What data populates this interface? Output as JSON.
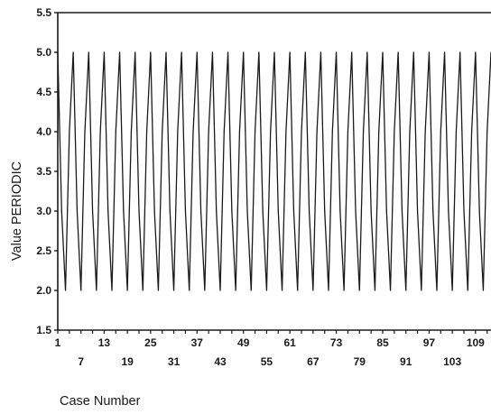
{
  "chart_data": {
    "type": "line",
    "title": "",
    "xlabel": "Case Number",
    "ylabel": "Value PERIODIC",
    "ylim": [
      1.5,
      5.5
    ],
    "xlim": [
      1,
      113
    ],
    "y_ticks": [
      "1.5",
      "2.0",
      "2.5",
      "3.0",
      "3.5",
      "4.0",
      "4.5",
      "5.0",
      "5.5"
    ],
    "x_ticks_top_row": [
      "1",
      "13",
      "25",
      "37",
      "49",
      "61",
      "73",
      "85",
      "97",
      "109"
    ],
    "x_ticks_bottom_row": [
      "7",
      "19",
      "31",
      "43",
      "55",
      "67",
      "79",
      "91",
      "103"
    ],
    "grid": false,
    "legend": false,
    "series": [
      {
        "period_cases": 4,
        "pattern_values": [
          5.0,
          3.0,
          2.0,
          4.0
        ],
        "x": [
          1,
          2,
          3,
          4,
          5,
          6,
          7,
          8,
          9,
          10,
          11,
          12,
          13,
          14,
          15,
          16,
          17,
          18,
          19,
          20,
          21,
          22,
          23,
          24,
          25,
          26,
          27,
          28,
          29,
          30,
          31,
          32,
          33,
          34,
          35,
          36,
          37,
          38,
          39,
          40,
          41,
          42,
          43,
          44,
          45,
          46,
          47,
          48,
          49,
          50,
          51,
          52,
          53,
          54,
          55,
          56,
          57,
          58,
          59,
          60,
          61,
          62,
          63,
          64,
          65,
          66,
          67,
          68,
          69,
          70,
          71,
          72,
          73,
          74,
          75,
          76,
          77,
          78,
          79,
          80,
          81,
          82,
          83,
          84,
          85,
          86,
          87,
          88,
          89,
          90,
          91,
          92,
          93,
          94,
          95,
          96,
          97,
          98,
          99,
          100,
          101,
          102,
          103,
          104,
          105,
          106,
          107,
          108,
          109,
          110,
          111,
          112,
          113
        ],
        "values": [
          5.0,
          3.0,
          2.0,
          4.0,
          5.0,
          3.0,
          2.0,
          4.0,
          5.0,
          3.0,
          2.0,
          4.0,
          5.0,
          3.0,
          2.0,
          4.0,
          5.0,
          3.0,
          2.0,
          4.0,
          5.0,
          3.0,
          2.0,
          4.0,
          5.0,
          3.0,
          2.0,
          4.0,
          5.0,
          3.0,
          2.0,
          4.0,
          5.0,
          3.0,
          2.0,
          4.0,
          5.0,
          3.0,
          2.0,
          4.0,
          5.0,
          3.0,
          2.0,
          4.0,
          5.0,
          3.0,
          2.0,
          4.0,
          5.0,
          3.0,
          2.0,
          4.0,
          5.0,
          3.0,
          2.0,
          4.0,
          5.0,
          3.0,
          2.0,
          4.0,
          5.0,
          3.0,
          2.0,
          4.0,
          5.0,
          3.0,
          2.0,
          4.0,
          5.0,
          3.0,
          2.0,
          4.0,
          5.0,
          3.0,
          2.0,
          4.0,
          5.0,
          3.0,
          2.0,
          4.0,
          5.0,
          3.0,
          2.0,
          4.0,
          5.0,
          3.0,
          2.0,
          4.0,
          5.0,
          3.0,
          2.0,
          4.0,
          5.0,
          3.0,
          2.0,
          4.0,
          5.0,
          3.0,
          2.0,
          4.0,
          5.0,
          3.0,
          2.0,
          4.0,
          5.0,
          3.0,
          2.0,
          4.0,
          5.0,
          3.0,
          2.0,
          4.0,
          5.0
        ]
      }
    ],
    "colors": {
      "line": "#1a1a1a",
      "axis": "#1a1a1a",
      "background": "#ffffff"
    }
  }
}
